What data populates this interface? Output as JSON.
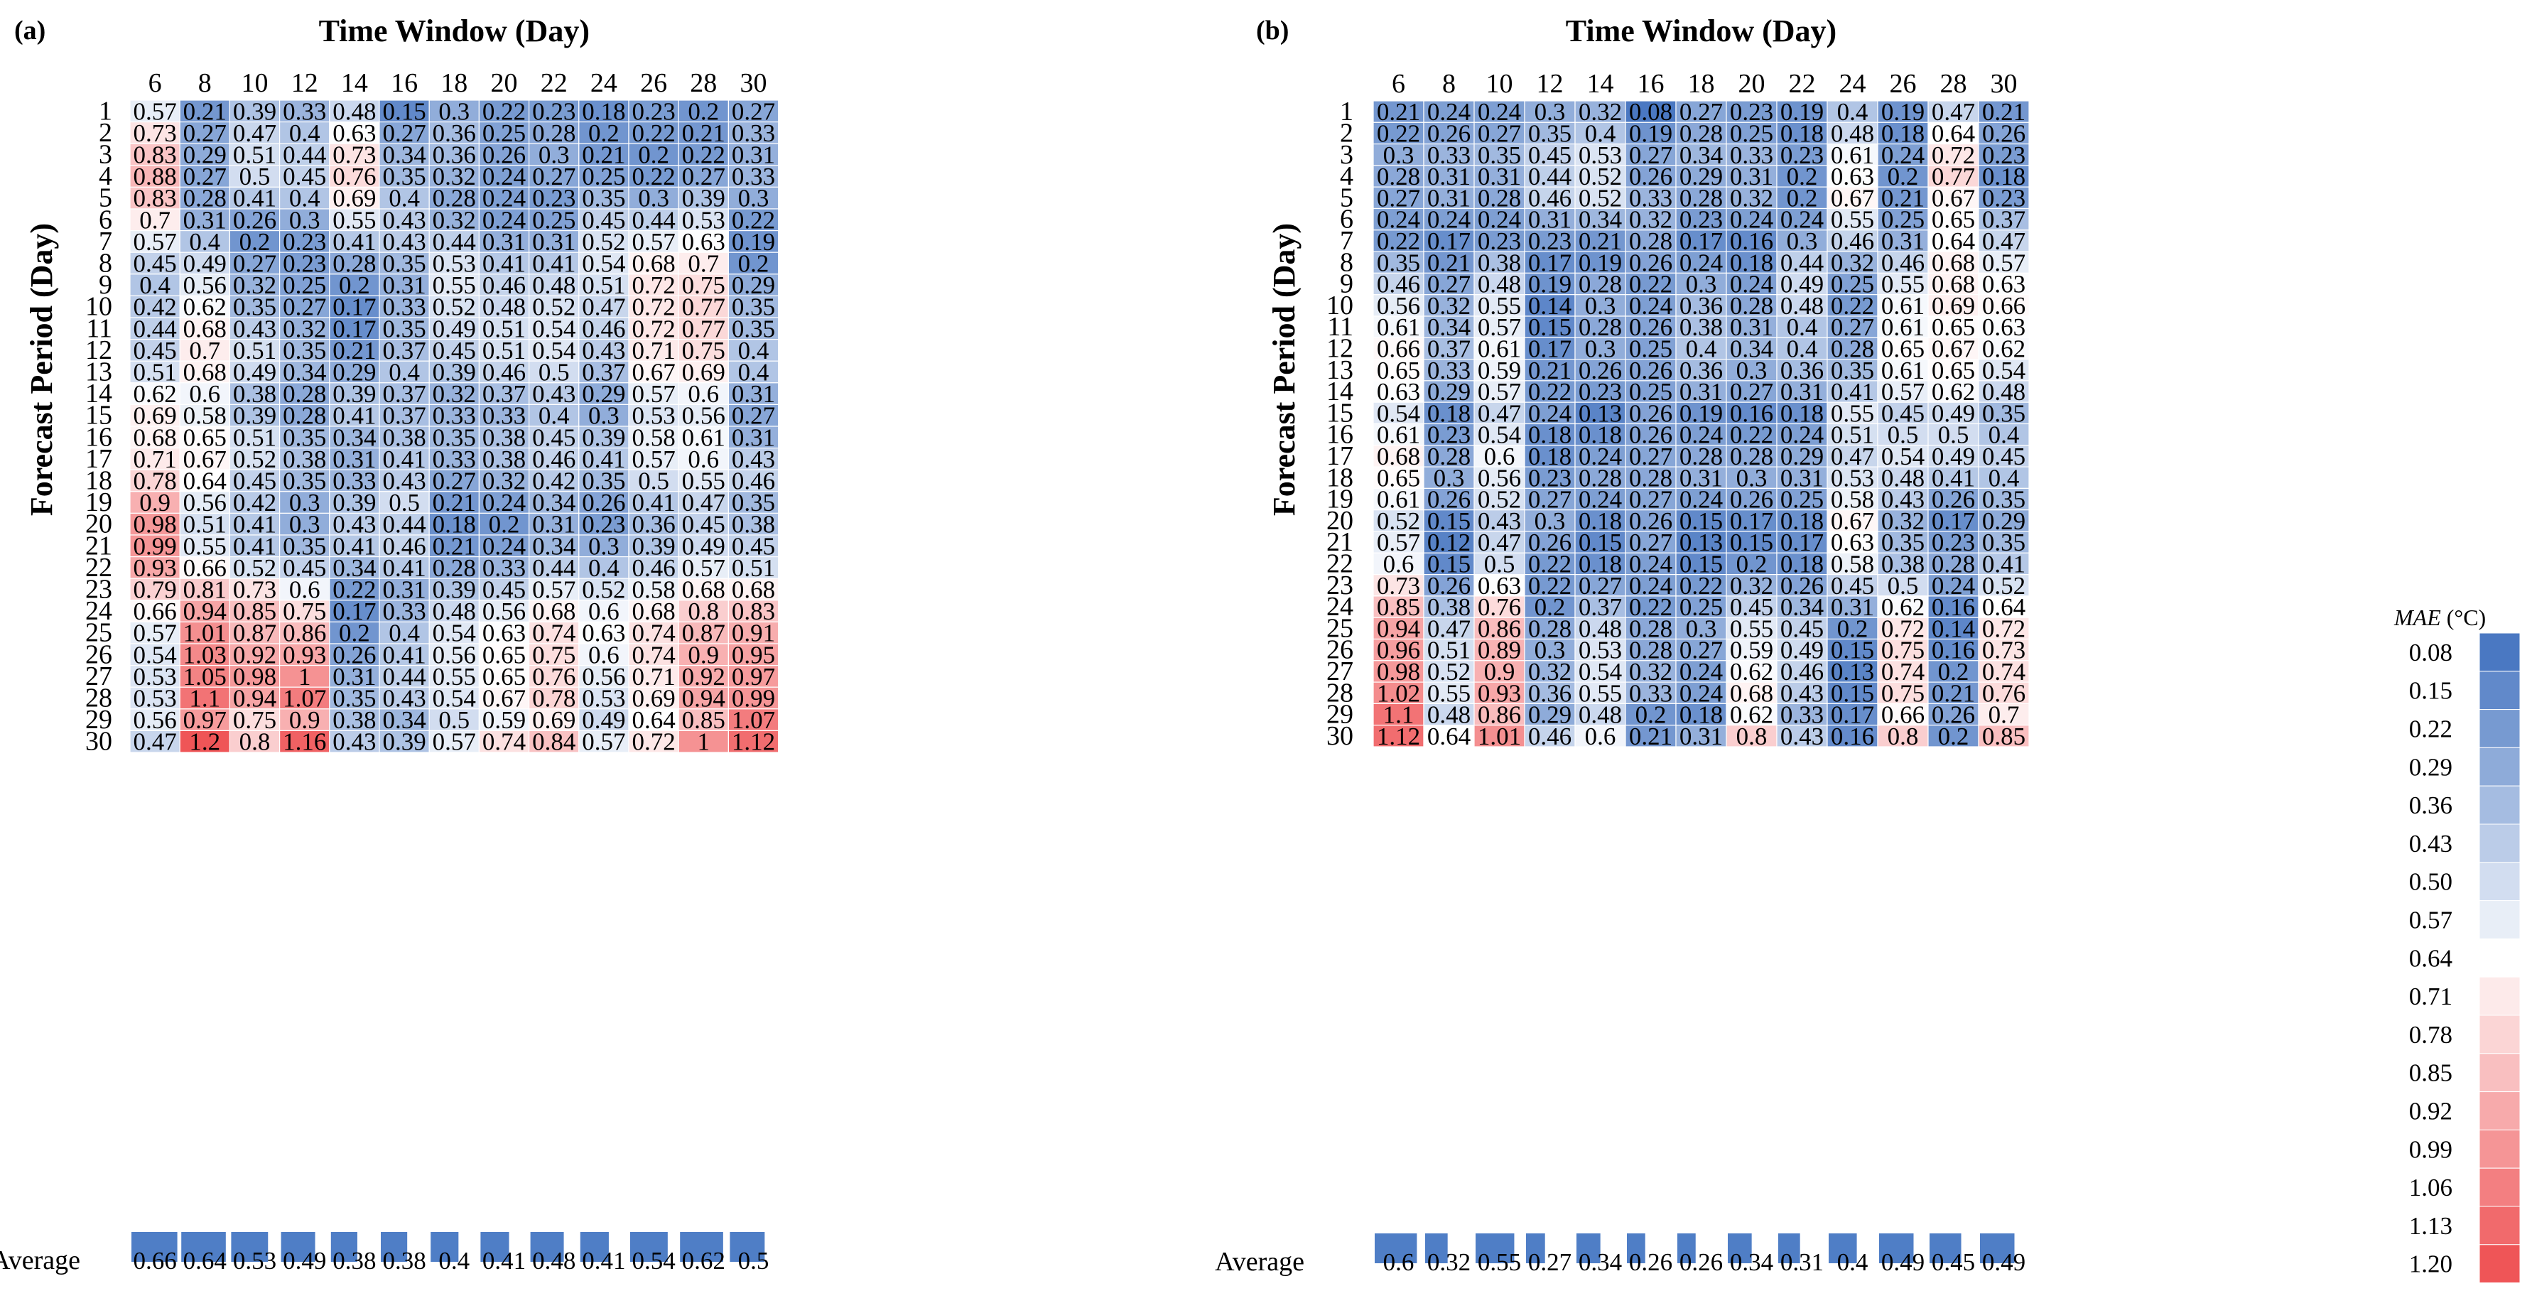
{
  "chart_data": [
    {
      "type": "heatmap",
      "panel_label": "(a)",
      "title": "Time Window (Day)",
      "xlabel": "Time Window (Day)",
      "ylabel": "Forecast Period (Day)",
      "x_categories": [
        "6",
        "8",
        "10",
        "12",
        "14",
        "16",
        "18",
        "20",
        "22",
        "24",
        "26",
        "28",
        "30"
      ],
      "y_categories": [
        "1",
        "2",
        "3",
        "4",
        "5",
        "6",
        "7",
        "8",
        "9",
        "10",
        "11",
        "12",
        "13",
        "14",
        "15",
        "16",
        "17",
        "18",
        "19",
        "20",
        "21",
        "22",
        "23",
        "24",
        "25",
        "26",
        "27",
        "28",
        "29",
        "30"
      ],
      "values": [
        [
          0.57,
          0.21,
          0.39,
          0.33,
          0.48,
          0.15,
          0.3,
          0.22,
          0.23,
          0.18,
          0.23,
          0.2,
          0.27
        ],
        [
          0.73,
          0.27,
          0.47,
          0.4,
          0.63,
          0.27,
          0.36,
          0.25,
          0.28,
          0.2,
          0.22,
          0.21,
          0.33
        ],
        [
          0.83,
          0.29,
          0.51,
          0.44,
          0.73,
          0.34,
          0.36,
          0.26,
          0.3,
          0.21,
          0.2,
          0.22,
          0.31
        ],
        [
          0.88,
          0.27,
          0.5,
          0.45,
          0.76,
          0.35,
          0.32,
          0.24,
          0.27,
          0.25,
          0.22,
          0.27,
          0.33
        ],
        [
          0.83,
          0.28,
          0.41,
          0.4,
          0.69,
          0.4,
          0.28,
          0.24,
          0.23,
          0.35,
          0.3,
          0.39,
          0.3
        ],
        [
          0.7,
          0.31,
          0.26,
          0.3,
          0.55,
          0.43,
          0.32,
          0.24,
          0.25,
          0.45,
          0.44,
          0.53,
          0.22
        ],
        [
          0.57,
          0.4,
          0.2,
          0.23,
          0.41,
          0.43,
          0.44,
          0.31,
          0.31,
          0.52,
          0.57,
          0.63,
          0.19
        ],
        [
          0.45,
          0.49,
          0.27,
          0.23,
          0.28,
          0.35,
          0.53,
          0.41,
          0.41,
          0.54,
          0.68,
          0.7,
          0.2
        ],
        [
          0.4,
          0.56,
          0.32,
          0.25,
          0.2,
          0.31,
          0.55,
          0.46,
          0.48,
          0.51,
          0.72,
          0.75,
          0.29
        ],
        [
          0.42,
          0.62,
          0.35,
          0.27,
          0.17,
          0.33,
          0.52,
          0.48,
          0.52,
          0.47,
          0.72,
          0.77,
          0.35
        ],
        [
          0.44,
          0.68,
          0.43,
          0.32,
          0.17,
          0.35,
          0.49,
          0.51,
          0.54,
          0.46,
          0.72,
          0.77,
          0.35
        ],
        [
          0.45,
          0.7,
          0.51,
          0.35,
          0.21,
          0.37,
          0.45,
          0.51,
          0.54,
          0.43,
          0.71,
          0.75,
          0.4
        ],
        [
          0.51,
          0.68,
          0.49,
          0.34,
          0.29,
          0.4,
          0.39,
          0.46,
          0.5,
          0.37,
          0.67,
          0.69,
          0.4
        ],
        [
          0.62,
          0.6,
          0.38,
          0.28,
          0.39,
          0.37,
          0.32,
          0.37,
          0.43,
          0.29,
          0.57,
          0.6,
          0.31
        ],
        [
          0.69,
          0.58,
          0.39,
          0.28,
          0.41,
          0.37,
          0.33,
          0.33,
          0.4,
          0.3,
          0.53,
          0.56,
          0.27
        ],
        [
          0.68,
          0.65,
          0.51,
          0.35,
          0.34,
          0.38,
          0.35,
          0.38,
          0.45,
          0.39,
          0.58,
          0.61,
          0.31
        ],
        [
          0.71,
          0.67,
          0.52,
          0.38,
          0.31,
          0.41,
          0.33,
          0.38,
          0.46,
          0.41,
          0.57,
          0.6,
          0.43
        ],
        [
          0.78,
          0.64,
          0.45,
          0.35,
          0.33,
          0.43,
          0.27,
          0.32,
          0.42,
          0.35,
          0.5,
          0.55,
          0.46
        ],
        [
          0.9,
          0.56,
          0.42,
          0.3,
          0.39,
          0.5,
          0.21,
          0.24,
          0.34,
          0.26,
          0.41,
          0.47,
          0.35
        ],
        [
          0.98,
          0.51,
          0.41,
          0.3,
          0.43,
          0.44,
          0.18,
          0.2,
          0.31,
          0.23,
          0.36,
          0.45,
          0.38
        ],
        [
          0.99,
          0.55,
          0.41,
          0.35,
          0.41,
          0.46,
          0.21,
          0.24,
          0.34,
          0.3,
          0.39,
          0.49,
          0.45
        ],
        [
          0.93,
          0.66,
          0.52,
          0.45,
          0.34,
          0.41,
          0.28,
          0.33,
          0.44,
          0.4,
          0.46,
          0.57,
          0.51
        ],
        [
          0.79,
          0.81,
          0.73,
          0.6,
          0.22,
          0.31,
          0.39,
          0.45,
          0.57,
          0.52,
          0.58,
          0.68,
          0.68
        ],
        [
          0.66,
          0.94,
          0.85,
          0.75,
          0.17,
          0.33,
          0.48,
          0.56,
          0.68,
          0.6,
          0.68,
          0.8,
          0.83
        ],
        [
          0.57,
          1.01,
          0.87,
          0.86,
          0.2,
          0.4,
          0.54,
          0.63,
          0.74,
          0.63,
          0.74,
          0.87,
          0.91
        ],
        [
          0.54,
          1.03,
          0.92,
          0.93,
          0.26,
          0.41,
          0.56,
          0.65,
          0.75,
          0.6,
          0.74,
          0.9,
          0.95
        ],
        [
          0.53,
          1.05,
          0.98,
          1.0,
          0.31,
          0.44,
          0.55,
          0.65,
          0.76,
          0.56,
          0.71,
          0.92,
          0.97
        ],
        [
          0.53,
          1.1,
          0.94,
          1.07,
          0.35,
          0.43,
          0.54,
          0.67,
          0.78,
          0.53,
          0.69,
          0.94,
          0.99
        ],
        [
          0.56,
          0.97,
          0.75,
          0.9,
          0.38,
          0.34,
          0.5,
          0.59,
          0.69,
          0.49,
          0.64,
          0.85,
          1.07
        ],
        [
          0.47,
          1.2,
          0.8,
          1.16,
          0.43,
          0.39,
          0.57,
          0.74,
          0.84,
          0.57,
          0.72,
          1.0,
          1.12
        ]
      ],
      "average_label": "Average",
      "average": [
        0.66,
        0.64,
        0.53,
        0.49,
        0.38,
        0.38,
        0.4,
        0.41,
        0.48,
        0.41,
        0.54,
        0.62,
        0.5
      ]
    },
    {
      "type": "heatmap",
      "panel_label": "(b)",
      "title": "Time Window (Day)",
      "xlabel": "Time Window (Day)",
      "ylabel": "Forecast Period (Day)",
      "x_categories": [
        "6",
        "8",
        "10",
        "12",
        "14",
        "16",
        "18",
        "20",
        "22",
        "24",
        "26",
        "28",
        "30"
      ],
      "y_categories": [
        "1",
        "2",
        "3",
        "4",
        "5",
        "6",
        "7",
        "8",
        "9",
        "10",
        "11",
        "12",
        "13",
        "14",
        "15",
        "16",
        "17",
        "18",
        "19",
        "20",
        "21",
        "22",
        "23",
        "24",
        "25",
        "26",
        "27",
        "28",
        "29",
        "30"
      ],
      "values": [
        [
          0.21,
          0.24,
          0.24,
          0.3,
          0.32,
          0.08,
          0.27,
          0.23,
          0.19,
          0.4,
          0.19,
          0.47,
          0.21
        ],
        [
          0.22,
          0.26,
          0.27,
          0.35,
          0.4,
          0.19,
          0.28,
          0.25,
          0.18,
          0.48,
          0.18,
          0.64,
          0.26
        ],
        [
          0.3,
          0.33,
          0.35,
          0.45,
          0.53,
          0.27,
          0.34,
          0.33,
          0.23,
          0.61,
          0.24,
          0.72,
          0.23
        ],
        [
          0.28,
          0.31,
          0.31,
          0.44,
          0.52,
          0.26,
          0.29,
          0.31,
          0.2,
          0.63,
          0.2,
          0.77,
          0.18
        ],
        [
          0.27,
          0.31,
          0.28,
          0.46,
          0.52,
          0.33,
          0.28,
          0.32,
          0.2,
          0.67,
          0.21,
          0.67,
          0.23
        ],
        [
          0.24,
          0.24,
          0.24,
          0.31,
          0.34,
          0.32,
          0.23,
          0.24,
          0.24,
          0.55,
          0.25,
          0.65,
          0.37
        ],
        [
          0.22,
          0.17,
          0.23,
          0.23,
          0.21,
          0.28,
          0.17,
          0.16,
          0.3,
          0.46,
          0.31,
          0.64,
          0.47
        ],
        [
          0.35,
          0.21,
          0.38,
          0.17,
          0.19,
          0.26,
          0.24,
          0.18,
          0.44,
          0.32,
          0.46,
          0.68,
          0.57
        ],
        [
          0.46,
          0.27,
          0.48,
          0.19,
          0.28,
          0.22,
          0.3,
          0.24,
          0.49,
          0.25,
          0.55,
          0.68,
          0.63
        ],
        [
          0.56,
          0.32,
          0.55,
          0.14,
          0.3,
          0.24,
          0.36,
          0.28,
          0.48,
          0.22,
          0.61,
          0.69,
          0.66
        ],
        [
          0.61,
          0.34,
          0.57,
          0.15,
          0.28,
          0.26,
          0.38,
          0.31,
          0.4,
          0.27,
          0.61,
          0.65,
          0.63
        ],
        [
          0.66,
          0.37,
          0.61,
          0.17,
          0.3,
          0.25,
          0.4,
          0.34,
          0.4,
          0.28,
          0.65,
          0.67,
          0.62
        ],
        [
          0.65,
          0.33,
          0.59,
          0.21,
          0.26,
          0.26,
          0.36,
          0.3,
          0.36,
          0.35,
          0.61,
          0.65,
          0.54
        ],
        [
          0.63,
          0.29,
          0.57,
          0.22,
          0.23,
          0.25,
          0.31,
          0.27,
          0.31,
          0.41,
          0.57,
          0.62,
          0.48
        ],
        [
          0.54,
          0.18,
          0.47,
          0.24,
          0.13,
          0.26,
          0.19,
          0.16,
          0.18,
          0.55,
          0.45,
          0.49,
          0.35
        ],
        [
          0.61,
          0.23,
          0.54,
          0.18,
          0.18,
          0.26,
          0.24,
          0.22,
          0.24,
          0.51,
          0.5,
          0.5,
          0.4
        ],
        [
          0.68,
          0.28,
          0.6,
          0.18,
          0.24,
          0.27,
          0.28,
          0.28,
          0.29,
          0.47,
          0.54,
          0.49,
          0.45
        ],
        [
          0.65,
          0.3,
          0.56,
          0.23,
          0.28,
          0.28,
          0.31,
          0.3,
          0.31,
          0.53,
          0.48,
          0.41,
          0.4
        ],
        [
          0.61,
          0.26,
          0.52,
          0.27,
          0.24,
          0.27,
          0.24,
          0.26,
          0.25,
          0.58,
          0.43,
          0.26,
          0.35
        ],
        [
          0.52,
          0.15,
          0.43,
          0.3,
          0.18,
          0.26,
          0.15,
          0.17,
          0.18,
          0.67,
          0.32,
          0.17,
          0.29
        ],
        [
          0.57,
          0.12,
          0.47,
          0.26,
          0.15,
          0.27,
          0.13,
          0.15,
          0.17,
          0.63,
          0.35,
          0.23,
          0.35
        ],
        [
          0.6,
          0.15,
          0.5,
          0.22,
          0.18,
          0.24,
          0.15,
          0.2,
          0.18,
          0.58,
          0.38,
          0.28,
          0.41
        ],
        [
          0.73,
          0.26,
          0.63,
          0.22,
          0.27,
          0.24,
          0.22,
          0.32,
          0.26,
          0.45,
          0.5,
          0.24,
          0.52
        ],
        [
          0.85,
          0.38,
          0.76,
          0.2,
          0.37,
          0.22,
          0.25,
          0.45,
          0.34,
          0.31,
          0.62,
          0.16,
          0.64
        ],
        [
          0.94,
          0.47,
          0.86,
          0.28,
          0.48,
          0.28,
          0.3,
          0.55,
          0.45,
          0.2,
          0.72,
          0.14,
          0.72
        ],
        [
          0.96,
          0.51,
          0.89,
          0.3,
          0.53,
          0.28,
          0.27,
          0.59,
          0.49,
          0.15,
          0.75,
          0.16,
          0.73
        ],
        [
          0.98,
          0.52,
          0.9,
          0.32,
          0.54,
          0.32,
          0.24,
          0.62,
          0.46,
          0.13,
          0.74,
          0.2,
          0.74
        ],
        [
          1.02,
          0.55,
          0.93,
          0.36,
          0.55,
          0.33,
          0.24,
          0.68,
          0.43,
          0.15,
          0.75,
          0.21,
          0.76
        ],
        [
          1.1,
          0.48,
          0.86,
          0.29,
          0.48,
          0.2,
          0.18,
          0.62,
          0.33,
          0.17,
          0.66,
          0.26,
          0.7
        ],
        [
          1.12,
          0.64,
          1.01,
          0.46,
          0.6,
          0.21,
          0.31,
          0.8,
          0.43,
          0.16,
          0.8,
          0.2,
          0.85
        ]
      ],
      "average_label": "Average",
      "average": [
        0.6,
        0.32,
        0.55,
        0.27,
        0.34,
        0.26,
        0.26,
        0.34,
        0.31,
        0.4,
        0.49,
        0.45,
        0.49
      ]
    }
  ],
  "legend": {
    "title_italic": "MAE",
    "title_unit": "(°C)",
    "ticks": [
      "0.08",
      "0.15",
      "0.22",
      "0.29",
      "0.36",
      "0.43",
      "0.50",
      "0.57",
      "0.64",
      "0.71",
      "0.78",
      "0.85",
      "0.92",
      "0.99",
      "1.06",
      "1.13",
      "1.20"
    ]
  },
  "colors": {
    "low": "#4a78c2",
    "mid": "#ffffff",
    "high": "#ef5557"
  }
}
